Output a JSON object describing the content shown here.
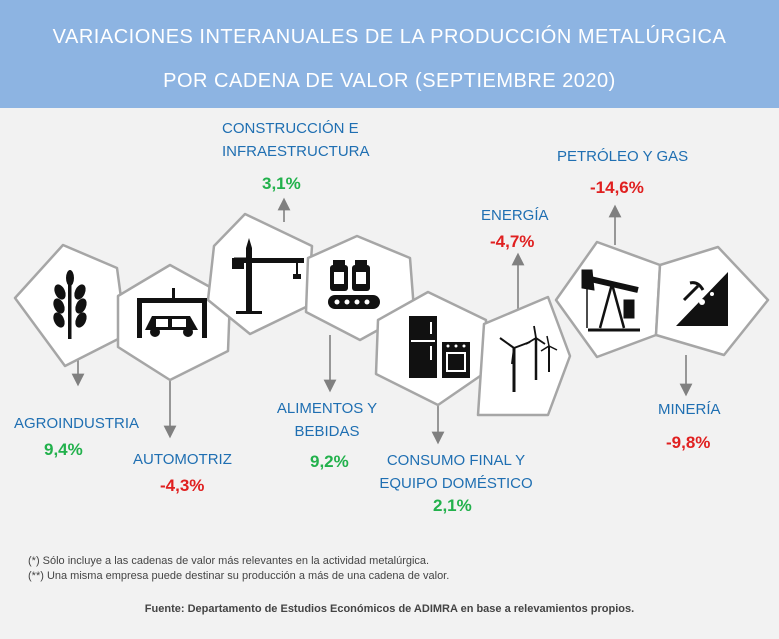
{
  "header": {
    "title_line1": "VARIACIONES INTERANUALES DE LA PRODUCCIÓN METALÚRGICA",
    "title_line2": "POR CADENA DE VALOR (SEPTIEMBRE 2020)"
  },
  "colors": {
    "header_bg": "#8db4e2",
    "label_blue": "#1f6fb2",
    "positive_green": "#22b14c",
    "negative_red": "#e02020",
    "hex_border": "#a6a6a6"
  },
  "chains": [
    {
      "id": "agroindustria",
      "icon": "wheat-icon",
      "label_lines": [
        "AGROINDUSTRIA"
      ],
      "value": "9,4%",
      "sign": "positive"
    },
    {
      "id": "automotriz",
      "icon": "car-lift-icon",
      "label_lines": [
        "AUTOMOTRIZ"
      ],
      "value": "-4,3%",
      "sign": "negative"
    },
    {
      "id": "construccion",
      "icon": "crane-icon",
      "label_lines": [
        "CONSTRUCCIÓN E",
        "INFRAESTRUCTURA"
      ],
      "value": "3,1%",
      "sign": "positive"
    },
    {
      "id": "alimentos",
      "icon": "food-jars-conveyor-icon",
      "label_lines": [
        "ALIMENTOS Y",
        "BEBIDAS"
      ],
      "value": "9,2%",
      "sign": "positive"
    },
    {
      "id": "consumo",
      "icon": "appliances-icon",
      "label_lines": [
        "CONSUMO FINAL Y",
        "EQUIPO DOMÉSTICO"
      ],
      "value": "2,1%",
      "sign": "positive"
    },
    {
      "id": "energia",
      "icon": "wind-turbines-icon",
      "label_lines": [
        "ENERGÍA"
      ],
      "value": "-4,7%",
      "sign": "negative"
    },
    {
      "id": "petroleo",
      "icon": "oil-pump-icon",
      "label_lines": [
        "PETRÓLEO Y GAS"
      ],
      "value": "-14,6%",
      "sign": "negative"
    },
    {
      "id": "mineria",
      "icon": "mining-icon",
      "label_lines": [
        "MINERÍA"
      ],
      "value": "-9,8%",
      "sign": "negative"
    }
  ],
  "notes": [
    "(*) Sólo incluye a las cadenas de valor más relevantes en la actividad metalúrgica.",
    "(**) Una misma empresa puede destinar su producción a más de una cadena de valor."
  ],
  "source": "Fuente: Departamento de Estudios Económicos de ADIMRA en base a relevamientos propios."
}
